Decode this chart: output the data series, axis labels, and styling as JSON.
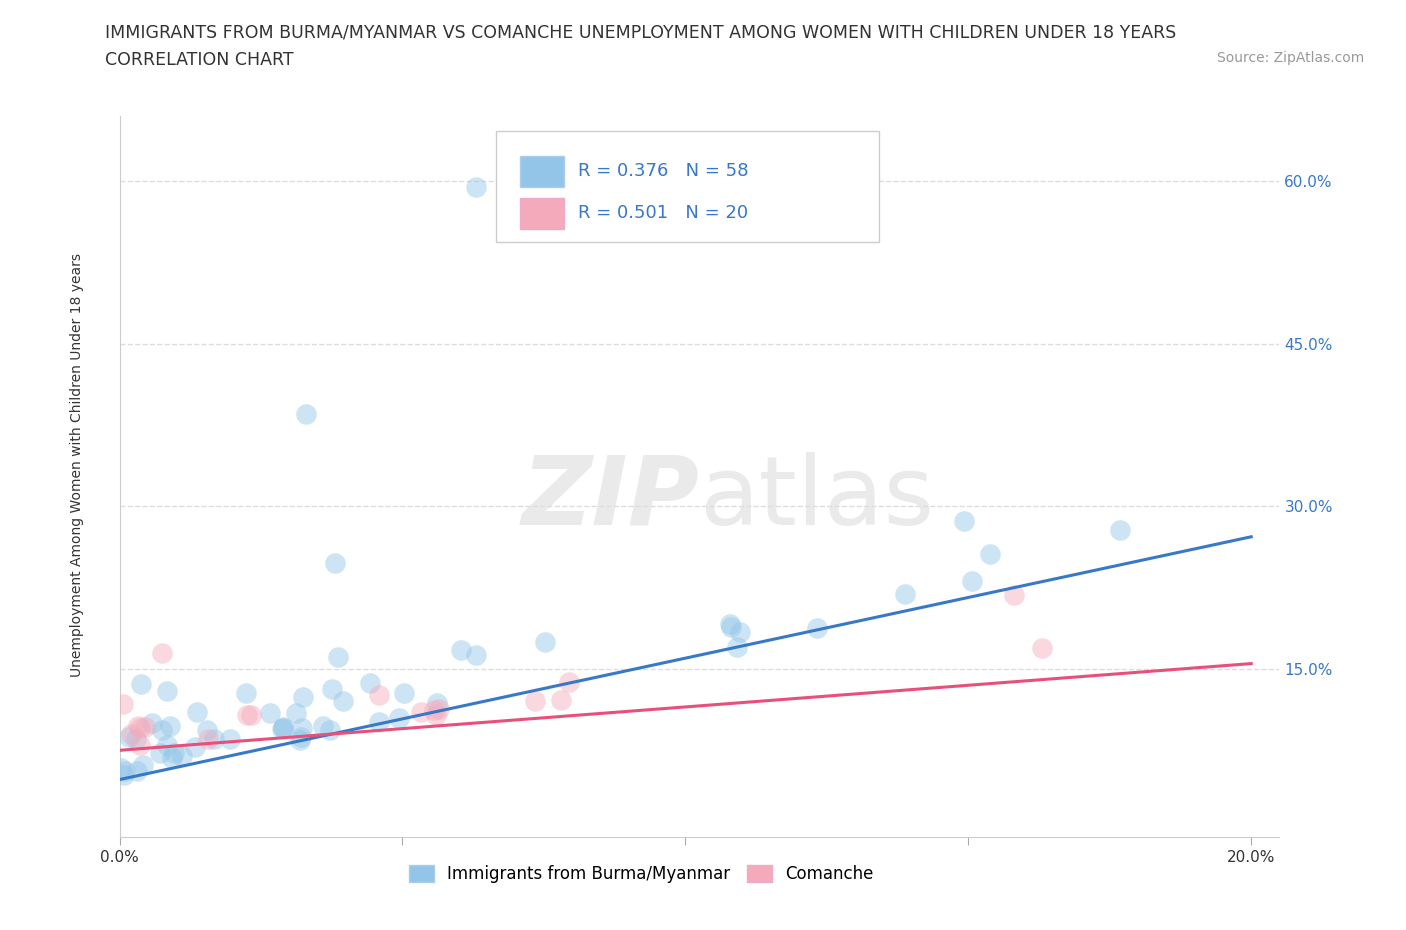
{
  "title_line1": "IMMIGRANTS FROM BURMA/MYANMAR VS COMANCHE UNEMPLOYMENT AMONG WOMEN WITH CHILDREN UNDER 18 YEARS",
  "title_line2": "CORRELATION CHART",
  "source_text": "Source: ZipAtlas.com",
  "ylabel": "Unemployment Among Women with Children Under 18 years",
  "xlim": [
    0.0,
    0.205
  ],
  "ylim": [
    -0.005,
    0.66
  ],
  "yticks": [
    0.15,
    0.3,
    0.45,
    0.6
  ],
  "ytick_labels": [
    "15.0%",
    "30.0%",
    "45.0%",
    "60.0%"
  ],
  "xticks": [
    0.0,
    0.05,
    0.1,
    0.15,
    0.2
  ],
  "xtick_labels": [
    "0.0%",
    "",
    "",
    "",
    "20.0%"
  ],
  "blue_color": "#92C5E8",
  "pink_color": "#F4AABB",
  "blue_line_color": "#3878C8",
  "pink_line_color": "#E8507A",
  "tick_color": "#3878C8",
  "watermark_color": "#DDDDDD",
  "R_blue": 0.376,
  "N_blue": 58,
  "R_pink": 0.501,
  "N_pink": 20,
  "blue_trend_x": [
    0.0,
    0.2
  ],
  "blue_trend_y": [
    0.048,
    0.272
  ],
  "pink_trend_x": [
    0.0,
    0.2
  ],
  "pink_trend_y": [
    0.075,
    0.155
  ],
  "background_color": "#FFFFFF",
  "grid_color": "#DDDDDD",
  "scatter_size": 220,
  "scatter_alpha": 0.45,
  "title_fontsize": 12.5,
  "subtitle_fontsize": 12.5,
  "source_fontsize": 10,
  "axis_label_fontsize": 10,
  "tick_fontsize": 11,
  "legend_fontsize": 13
}
